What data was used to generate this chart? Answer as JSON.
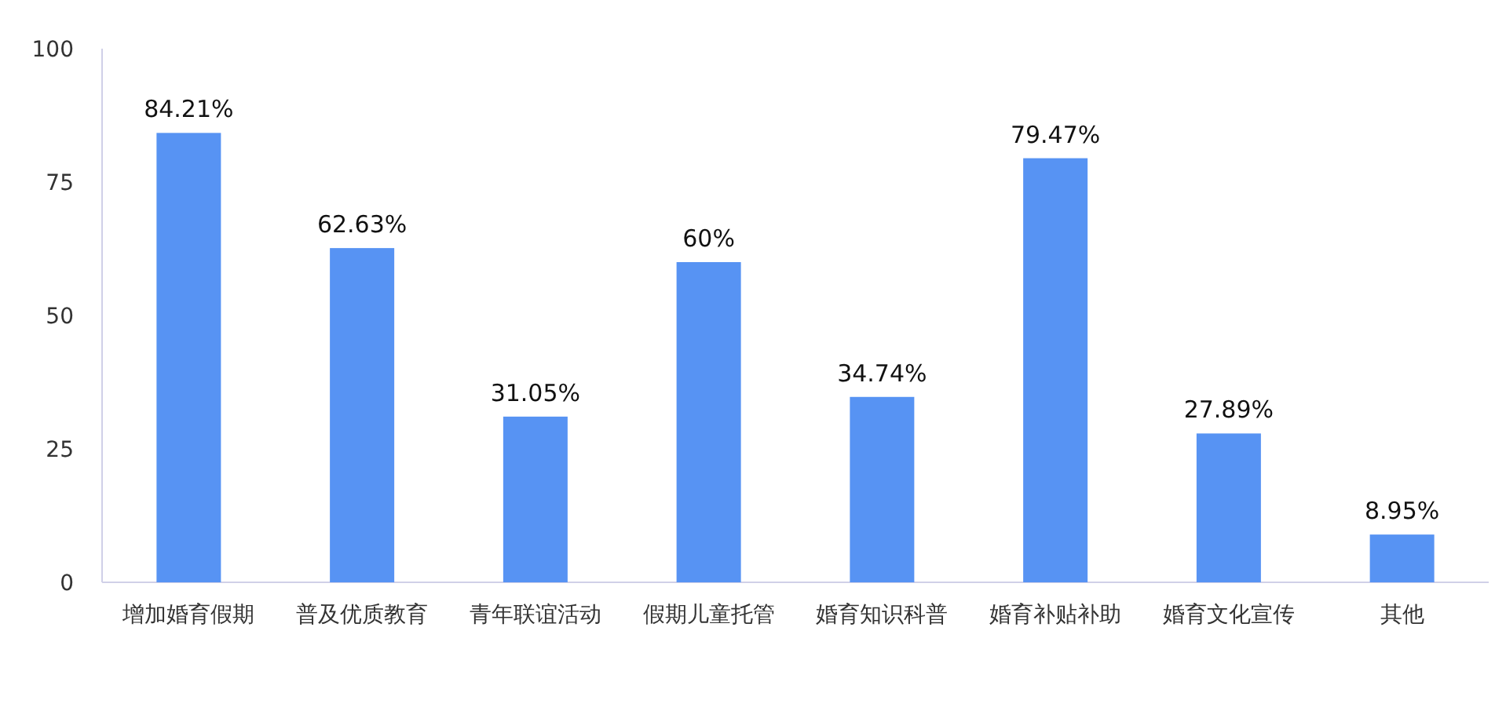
{
  "chart_data": {
    "type": "bar",
    "categories": [
      "增加婚育假期",
      "普及优质教育",
      "青年联谊活动",
      "假期儿童托管",
      "婚育知识科普",
      "婚育补贴补助",
      "婚育文化宣传",
      "其他"
    ],
    "values": [
      84.21,
      62.63,
      31.05,
      60,
      34.74,
      79.47,
      27.89,
      8.95
    ],
    "value_labels": [
      "84.21%",
      "62.63%",
      "31.05%",
      "60%",
      "34.74%",
      "79.47%",
      "27.89%",
      "8.95%"
    ],
    "color": "#5793f3",
    "ylim": [
      0,
      100
    ],
    "yticks": [
      0,
      25,
      50,
      75,
      100
    ]
  }
}
